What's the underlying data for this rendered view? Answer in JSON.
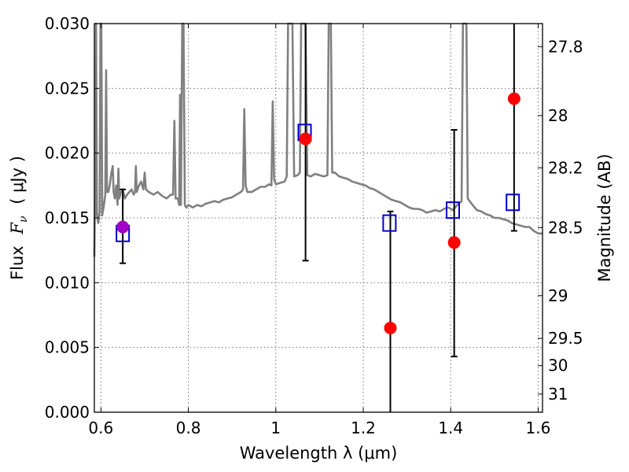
{
  "chart_data": {
    "type": "scatter",
    "xlabel": "Wavelength  λ (μm)",
    "ylabel_text": "Flux",
    "ylabel_math": "F",
    "ylabel_sub": "ν",
    "ylabel_unit": "( μJy )",
    "ylabel_right": "Magnitude (AB)",
    "xlim": [
      0.585,
      1.61
    ],
    "ylim": [
      0.0,
      0.03
    ],
    "x_ticks": [
      {
        "value": 0.6,
        "label": "0.6"
      },
      {
        "value": 0.8,
        "label": "0.8"
      },
      {
        "value": 1.0,
        "label": "1"
      },
      {
        "value": 1.2,
        "label": "1.2"
      },
      {
        "value": 1.4,
        "label": "1.4"
      },
      {
        "value": 1.6,
        "label": "1.6"
      }
    ],
    "y_ticks": [
      {
        "value": 0.0,
        "label": "0.000"
      },
      {
        "value": 0.005,
        "label": "0.005"
      },
      {
        "value": 0.01,
        "label": "0.010"
      },
      {
        "value": 0.015,
        "label": "0.015"
      },
      {
        "value": 0.02,
        "label": "0.020"
      },
      {
        "value": 0.025,
        "label": "0.025"
      },
      {
        "value": 0.03,
        "label": "0.030"
      }
    ],
    "right_ticks": [
      {
        "flux": 0.02822,
        "label": "27.8"
      },
      {
        "flux": 0.0229,
        "label": "28"
      },
      {
        "flux": 0.01887,
        "label": "28.2"
      },
      {
        "flux": 0.01425,
        "label": "28.5"
      },
      {
        "flux": 0.009,
        "label": "29"
      },
      {
        "flux": 0.0057,
        "label": "29.5"
      },
      {
        "flux": 0.0036,
        "label": "30"
      },
      {
        "flux": 0.0014,
        "label": "31"
      }
    ],
    "grid": true,
    "colors": {
      "spectrum": "#808080",
      "measured": "#ff0000",
      "measured_first": "#a000c8",
      "model": "#0000cc",
      "errorbar": "#000000"
    },
    "spectrum": [
      [
        0.585,
        0.012
      ],
      [
        0.587,
        0.018
      ],
      [
        0.589,
        0.03
      ],
      [
        0.591,
        0.0152
      ],
      [
        0.594,
        0.0146
      ],
      [
        0.597,
        0.0155
      ],
      [
        0.599,
        0.03
      ],
      [
        0.601,
        0.03
      ],
      [
        0.603,
        0.0152
      ],
      [
        0.607,
        0.016
      ],
      [
        0.61,
        0.0168
      ],
      [
        0.612,
        0.0264
      ],
      [
        0.614,
        0.017
      ],
      [
        0.617,
        0.017
      ],
      [
        0.62,
        0.0175
      ],
      [
        0.624,
        0.0185
      ],
      [
        0.627,
        0.019
      ],
      [
        0.629,
        0.017
      ],
      [
        0.632,
        0.0165
      ],
      [
        0.635,
        0.0175
      ],
      [
        0.638,
        0.016
      ],
      [
        0.64,
        0.0188
      ],
      [
        0.642,
        0.0165
      ],
      [
        0.646,
        0.017
      ],
      [
        0.65,
        0.0172
      ],
      [
        0.655,
        0.0165
      ],
      [
        0.66,
        0.0168
      ],
      [
        0.665,
        0.017
      ],
      [
        0.67,
        0.0172
      ],
      [
        0.675,
        0.0168
      ],
      [
        0.678,
        0.017
      ],
      [
        0.68,
        0.019
      ],
      [
        0.682,
        0.017
      ],
      [
        0.687,
        0.0175
      ],
      [
        0.692,
        0.0178
      ],
      [
        0.697,
        0.0172
      ],
      [
        0.7,
        0.0185
      ],
      [
        0.703,
        0.0172
      ],
      [
        0.71,
        0.017
      ],
      [
        0.72,
        0.0168
      ],
      [
        0.73,
        0.017
      ],
      [
        0.74,
        0.0167
      ],
      [
        0.75,
        0.0165
      ],
      [
        0.76,
        0.0168
      ],
      [
        0.765,
        0.0168
      ],
      [
        0.768,
        0.0225
      ],
      [
        0.771,
        0.0165
      ],
      [
        0.776,
        0.0165
      ],
      [
        0.779,
        0.016
      ],
      [
        0.781,
        0.0245
      ],
      [
        0.783,
        0.016
      ],
      [
        0.786,
        0.03
      ],
      [
        0.789,
        0.03
      ],
      [
        0.792,
        0.016
      ],
      [
        0.795,
        0.0158
      ],
      [
        0.8,
        0.016
      ],
      [
        0.81,
        0.0158
      ],
      [
        0.82,
        0.016
      ],
      [
        0.83,
        0.0159
      ],
      [
        0.84,
        0.0161
      ],
      [
        0.85,
        0.0162
      ],
      [
        0.86,
        0.0163
      ],
      [
        0.87,
        0.0162
      ],
      [
        0.88,
        0.0164
      ],
      [
        0.89,
        0.0165
      ],
      [
        0.9,
        0.0166
      ],
      [
        0.91,
        0.0168
      ],
      [
        0.92,
        0.017
      ],
      [
        0.925,
        0.0172
      ],
      [
        0.928,
        0.0234
      ],
      [
        0.931,
        0.0175
      ],
      [
        0.935,
        0.017
      ],
      [
        0.945,
        0.017
      ],
      [
        0.955,
        0.0172
      ],
      [
        0.965,
        0.0174
      ],
      [
        0.975,
        0.0174
      ],
      [
        0.985,
        0.0176
      ],
      [
        0.99,
        0.0175
      ],
      [
        0.993,
        0.024
      ],
      [
        0.996,
        0.018
      ],
      [
        1.0,
        0.0176
      ],
      [
        1.01,
        0.0177
      ],
      [
        1.02,
        0.0178
      ],
      [
        1.025,
        0.0182
      ],
      [
        1.028,
        0.03
      ],
      [
        1.038,
        0.03
      ],
      [
        1.042,
        0.0182
      ],
      [
        1.05,
        0.0183
      ],
      [
        1.055,
        0.0185
      ],
      [
        1.058,
        0.03
      ],
      [
        1.068,
        0.03
      ],
      [
        1.072,
        0.0183
      ],
      [
        1.08,
        0.0182
      ],
      [
        1.09,
        0.0184
      ],
      [
        1.1,
        0.0183
      ],
      [
        1.11,
        0.0182
      ],
      [
        1.118,
        0.0183
      ],
      [
        1.121,
        0.03
      ],
      [
        1.126,
        0.03
      ],
      [
        1.129,
        0.0185
      ],
      [
        1.135,
        0.0185
      ],
      [
        1.145,
        0.0182
      ],
      [
        1.155,
        0.0181
      ],
      [
        1.165,
        0.018
      ],
      [
        1.175,
        0.0178
      ],
      [
        1.185,
        0.0177
      ],
      [
        1.195,
        0.0176
      ],
      [
        1.205,
        0.0175
      ],
      [
        1.215,
        0.0173
      ],
      [
        1.225,
        0.0172
      ],
      [
        1.235,
        0.017
      ],
      [
        1.245,
        0.0168
      ],
      [
        1.255,
        0.0166
      ],
      [
        1.265,
        0.0164
      ],
      [
        1.275,
        0.0163
      ],
      [
        1.285,
        0.0162
      ],
      [
        1.295,
        0.016
      ],
      [
        1.305,
        0.0158
      ],
      [
        1.315,
        0.0157
      ],
      [
        1.325,
        0.0157
      ],
      [
        1.335,
        0.0156
      ],
      [
        1.345,
        0.0154
      ],
      [
        1.355,
        0.0155
      ],
      [
        1.365,
        0.0156
      ],
      [
        1.375,
        0.0155
      ],
      [
        1.385,
        0.0157
      ],
      [
        1.395,
        0.0158
      ],
      [
        1.405,
        0.0156
      ],
      [
        1.415,
        0.016
      ],
      [
        1.425,
        0.0163
      ],
      [
        1.428,
        0.03
      ],
      [
        1.436,
        0.03
      ],
      [
        1.439,
        0.0165
      ],
      [
        1.45,
        0.016
      ],
      [
        1.46,
        0.0156
      ],
      [
        1.47,
        0.0155
      ],
      [
        1.48,
        0.0153
      ],
      [
        1.49,
        0.0152
      ],
      [
        1.5,
        0.015
      ],
      [
        1.51,
        0.015
      ],
      [
        1.52,
        0.0149
      ],
      [
        1.53,
        0.0148
      ],
      [
        1.54,
        0.0146
      ],
      [
        1.55,
        0.0145
      ],
      [
        1.56,
        0.0144
      ],
      [
        1.57,
        0.0143
      ],
      [
        1.58,
        0.0143
      ],
      [
        1.59,
        0.014
      ],
      [
        1.6,
        0.0138
      ],
      [
        1.61,
        0.0138
      ]
    ],
    "measured": [
      {
        "x": 0.65,
        "y": 0.0143,
        "yerr_low": 0.0115,
        "yerr_high": 0.0172
      },
      {
        "x": 1.068,
        "y": 0.0211,
        "yerr_low": 0.0117,
        "yerr_high": 0.03
      },
      {
        "x": 1.262,
        "y": 0.0065,
        "yerr_low": 0.0,
        "yerr_high": 0.0155
      },
      {
        "x": 1.408,
        "y": 0.0131,
        "yerr_low": 0.0043,
        "yerr_high": 0.0218
      },
      {
        "x": 1.545,
        "y": 0.0242,
        "yerr_low": 0.014,
        "yerr_high": 0.03
      }
    ],
    "model": [
      {
        "x": 0.65,
        "y": 0.0138
      },
      {
        "x": 1.066,
        "y": 0.0216
      },
      {
        "x": 1.26,
        "y": 0.0146
      },
      {
        "x": 1.405,
        "y": 0.0156
      },
      {
        "x": 1.542,
        "y": 0.0162
      }
    ]
  }
}
